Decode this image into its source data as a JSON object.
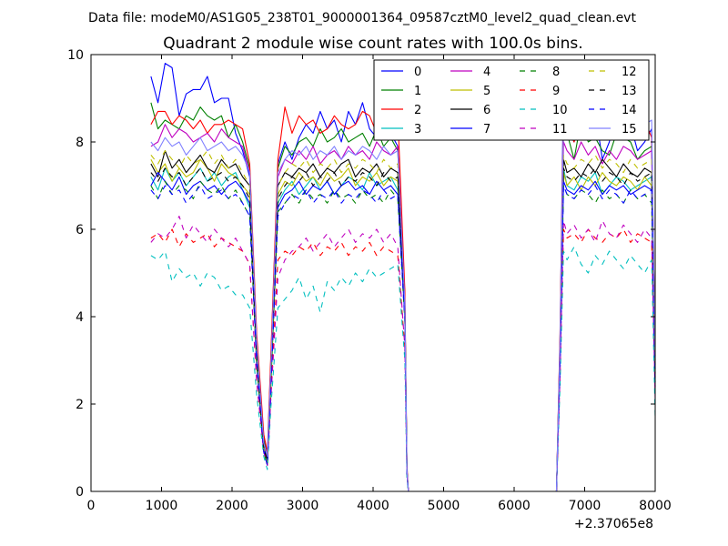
{
  "chart_data": {
    "type": "line",
    "suptitle": "Data file: modeM0/AS1G05_238T01_9000001364_09587cztM0_level2_quad_clean.evt",
    "title": "Quadrant 2 module wise count rates with 100.0s bins.",
    "xlabel": "",
    "ylabel": "",
    "x_offset_label": "+2.37065e8",
    "xlim": [
      0,
      8000
    ],
    "ylim": [
      0,
      10
    ],
    "xticks": [
      "0",
      "1000",
      "2000",
      "3000",
      "4000",
      "5000",
      "6000",
      "7000",
      "8000"
    ],
    "yticks": [
      "0",
      "2",
      "4",
      "6",
      "8",
      "10"
    ],
    "grid": false,
    "legend_position": "top-right",
    "x": [
      850,
      950,
      1050,
      1150,
      1250,
      1350,
      1450,
      1550,
      1650,
      1750,
      1850,
      1950,
      2050,
      2150,
      2250,
      2350,
      2450,
      2500,
      2550,
      2650,
      2750,
      2850,
      2950,
      3050,
      3150,
      3250,
      3350,
      3450,
      3550,
      3650,
      3750,
      3850,
      3950,
      4050,
      4150,
      4250,
      4350,
      4450,
      4480,
      4500,
      4600,
      4800,
      5000,
      5200,
      5400,
      5600,
      5800,
      6000,
      6200,
      6400,
      6600,
      6650,
      6700,
      6750,
      6850,
      6950,
      7050,
      7150,
      7250,
      7350,
      7450,
      7550,
      7650,
      7750,
      7850,
      7950,
      8000
    ],
    "series": [
      {
        "name": "0",
        "color": "#0000ff",
        "dash": "solid",
        "values": [
          9.5,
          8.9,
          9.8,
          9.7,
          8.6,
          9.1,
          9.2,
          9.2,
          9.5,
          8.9,
          9.0,
          9.0,
          8.2,
          7.8,
          7.2,
          3.5,
          1.2,
          0.8,
          3.0,
          7.5,
          8.0,
          7.6,
          8.1,
          8.4,
          8.2,
          8.7,
          8.3,
          8.5,
          8.0,
          8.7,
          8.4,
          8.9,
          8.3,
          8.1,
          8.6,
          8.2,
          7.9,
          4.5,
          0.5,
          0,
          0,
          0,
          0,
          0,
          0,
          0,
          0,
          0,
          0,
          0,
          0,
          3.5,
          9.4,
          8.4,
          8.0,
          9.0,
          8.3,
          8.7,
          7.6,
          8.0,
          8.7,
          8.3,
          8.4,
          7.8,
          8.0,
          8.3,
          3.0
        ]
      },
      {
        "name": "1",
        "color": "#008000",
        "dash": "solid",
        "values": [
          8.9,
          8.3,
          8.5,
          8.4,
          8.3,
          8.6,
          8.5,
          8.8,
          8.6,
          8.5,
          8.6,
          8.1,
          8.4,
          8.0,
          7.4,
          3.4,
          1.2,
          0.7,
          2.9,
          7.4,
          7.9,
          7.7,
          8.0,
          8.1,
          7.9,
          8.3,
          8.0,
          8.1,
          8.3,
          8.0,
          8.1,
          8.2,
          7.9,
          8.3,
          7.9,
          8.1,
          7.8,
          4.4,
          0.5,
          0,
          0,
          0,
          0,
          0,
          0,
          0,
          0,
          0,
          0,
          0,
          0,
          3.4,
          8.3,
          8.2,
          7.6,
          8.5,
          8.0,
          8.1,
          7.8,
          7.7,
          8.2,
          8.1,
          8.0,
          7.6,
          7.8,
          7.9,
          2.9
        ]
      },
      {
        "name": "2",
        "color": "#ff0000",
        "dash": "solid",
        "values": [
          8.4,
          8.7,
          8.7,
          8.4,
          8.6,
          8.5,
          8.3,
          8.5,
          8.2,
          8.4,
          8.4,
          8.5,
          8.4,
          8.3,
          7.5,
          3.6,
          1.3,
          0.9,
          3.1,
          7.6,
          8.8,
          8.2,
          8.6,
          8.4,
          8.5,
          8.2,
          8.3,
          8.6,
          8.4,
          8.3,
          8.4,
          8.7,
          8.6,
          8.2,
          8.7,
          8.5,
          8.6,
          4.6,
          0.6,
          0,
          0,
          0,
          0,
          0,
          0,
          0,
          0,
          0,
          0,
          0,
          0,
          3.6,
          8.8,
          8.3,
          8.0,
          8.5,
          8.7,
          8.1,
          8.2,
          8.8,
          8.6,
          8.4,
          8.5,
          8.2,
          8.5,
          8.1,
          3.1
        ]
      },
      {
        "name": "3",
        "color": "#00bfbf",
        "dash": "solid",
        "values": [
          7.2,
          6.9,
          7.4,
          7.1,
          7.3,
          7.0,
          7.2,
          7.4,
          7.1,
          7.3,
          7.0,
          7.2,
          7.3,
          6.9,
          6.5,
          3.0,
          1.0,
          0.6,
          2.5,
          6.6,
          6.9,
          7.1,
          6.8,
          7.0,
          7.2,
          6.9,
          7.1,
          6.8,
          7.0,
          7.2,
          7.1,
          6.9,
          7.3,
          7.0,
          7.1,
          7.2,
          6.9,
          4.0,
          0.4,
          0,
          0,
          0,
          0,
          0,
          0,
          0,
          0,
          0,
          0,
          0,
          0,
          3.0,
          7.4,
          7.0,
          6.9,
          7.2,
          7.1,
          7.3,
          6.8,
          7.0,
          7.2,
          7.1,
          6.9,
          7.0,
          7.1,
          7.2,
          2.5
        ]
      },
      {
        "name": "4",
        "color": "#bf00bf",
        "dash": "solid",
        "values": [
          7.9,
          8.0,
          8.4,
          8.1,
          8.3,
          8.2,
          8.0,
          8.1,
          8.2,
          8.0,
          8.3,
          8.1,
          8.0,
          7.9,
          7.3,
          3.3,
          1.1,
          0.8,
          2.8,
          7.2,
          7.6,
          7.5,
          7.8,
          7.6,
          7.9,
          7.5,
          7.7,
          7.8,
          7.6,
          7.9,
          7.7,
          7.8,
          7.6,
          8.0,
          7.8,
          7.7,
          7.9,
          4.3,
          0.5,
          0,
          0,
          0,
          0,
          0,
          0,
          0,
          0,
          0,
          0,
          0,
          0,
          3.3,
          8.0,
          7.8,
          7.6,
          8.0,
          7.7,
          7.9,
          7.5,
          7.8,
          7.6,
          7.9,
          7.8,
          7.6,
          7.7,
          7.8,
          2.8
        ]
      },
      {
        "name": "5",
        "color": "#bfbf00",
        "dash": "solid",
        "values": [
          7.6,
          7.3,
          7.5,
          7.1,
          7.4,
          7.2,
          7.3,
          7.6,
          7.4,
          7.1,
          7.5,
          7.3,
          7.2,
          7.0,
          6.8,
          3.1,
          1.0,
          0.7,
          2.6,
          6.8,
          7.1,
          7.0,
          7.3,
          7.1,
          7.2,
          7.0,
          7.3,
          7.1,
          7.2,
          7.4,
          7.0,
          7.2,
          7.1,
          7.3,
          7.0,
          7.2,
          7.1,
          4.1,
          0.4,
          0,
          0,
          0,
          0,
          0,
          0,
          0,
          0,
          0,
          0,
          0,
          0,
          3.1,
          7.3,
          7.0,
          7.2,
          6.9,
          7.2,
          7.0,
          7.3,
          7.1,
          7.0,
          7.2,
          7.1,
          6.9,
          7.2,
          7.0,
          2.6
        ]
      },
      {
        "name": "6",
        "color": "#000000",
        "dash": "solid",
        "values": [
          7.5,
          7.2,
          7.8,
          7.4,
          7.6,
          7.3,
          7.5,
          7.7,
          7.4,
          7.3,
          7.6,
          7.4,
          7.5,
          7.2,
          7.0,
          3.2,
          1.1,
          0.7,
          2.7,
          7.0,
          7.3,
          7.2,
          7.4,
          7.3,
          7.5,
          7.2,
          7.4,
          7.3,
          7.5,
          7.6,
          7.2,
          7.4,
          7.3,
          7.5,
          7.2,
          7.4,
          7.3,
          4.2,
          0.5,
          0,
          0,
          0,
          0,
          0,
          0,
          0,
          0,
          0,
          0,
          0,
          0,
          3.2,
          7.6,
          7.3,
          7.4,
          7.2,
          7.5,
          7.3,
          7.6,
          7.4,
          7.2,
          7.5,
          7.3,
          7.2,
          7.4,
          7.3,
          2.7
        ]
      },
      {
        "name": "7",
        "color": "#0000ff",
        "dash": "solid",
        "values": [
          7.0,
          7.3,
          7.1,
          6.9,
          7.2,
          6.8,
          7.0,
          7.1,
          6.9,
          7.0,
          6.8,
          7.0,
          7.1,
          6.9,
          6.6,
          3.0,
          1.0,
          0.6,
          2.5,
          6.5,
          6.8,
          6.9,
          7.1,
          6.8,
          7.0,
          6.9,
          7.1,
          6.8,
          7.0,
          7.1,
          6.9,
          7.0,
          6.8,
          7.1,
          6.9,
          7.0,
          6.8,
          4.0,
          0.4,
          0,
          0,
          0,
          0,
          0,
          0,
          0,
          0,
          0,
          0,
          0,
          0,
          3.0,
          7.1,
          6.9,
          6.8,
          7.0,
          6.9,
          7.1,
          6.8,
          7.0,
          6.9,
          7.0,
          6.8,
          6.9,
          7.0,
          6.9,
          2.5
        ]
      },
      {
        "name": "8",
        "color": "#008000",
        "dash": "dashed",
        "values": [
          7.0,
          6.7,
          7.1,
          6.8,
          7.0,
          6.9,
          6.7,
          7.1,
          6.9,
          6.8,
          7.0,
          6.7,
          6.9,
          6.6,
          6.3,
          2.9,
          0.9,
          0.6,
          2.4,
          6.4,
          6.6,
          6.8,
          6.6,
          6.9,
          6.7,
          6.8,
          6.6,
          6.9,
          6.7,
          6.8,
          6.6,
          6.9,
          6.7,
          6.8,
          6.6,
          6.9,
          6.7,
          3.9,
          0.4,
          0,
          0,
          0,
          0,
          0,
          0,
          0,
          0,
          0,
          0,
          0,
          0,
          2.9,
          7.0,
          6.8,
          6.7,
          6.9,
          6.8,
          6.6,
          6.9,
          6.7,
          6.8,
          6.6,
          6.9,
          6.7,
          6.8,
          6.6,
          2.4
        ]
      },
      {
        "name": "9",
        "color": "#ff0000",
        "dash": "dashed",
        "values": [
          5.8,
          5.9,
          5.7,
          6.0,
          5.6,
          5.9,
          5.7,
          5.8,
          5.9,
          5.6,
          5.8,
          5.7,
          5.6,
          5.5,
          5.2,
          2.5,
          0.9,
          0.6,
          2.2,
          5.3,
          5.5,
          5.4,
          5.6,
          5.5,
          5.7,
          5.4,
          5.6,
          5.5,
          5.7,
          5.4,
          5.6,
          5.5,
          5.7,
          5.4,
          5.6,
          5.5,
          5.4,
          3.3,
          0.4,
          0,
          0,
          0,
          0,
          0,
          0,
          0,
          0,
          0,
          0,
          0,
          0,
          2.6,
          6.0,
          5.8,
          5.9,
          5.7,
          6.0,
          5.8,
          5.7,
          5.9,
          5.8,
          6.0,
          5.7,
          5.9,
          5.8,
          5.7,
          2.2
        ]
      },
      {
        "name": "10",
        "color": "#00bfbf",
        "dash": "dashed",
        "values": [
          5.4,
          5.3,
          5.5,
          4.8,
          5.1,
          4.9,
          5.0,
          4.7,
          5.0,
          4.9,
          4.6,
          4.7,
          4.5,
          4.5,
          4.2,
          2.2,
          0.8,
          0.5,
          1.9,
          4.2,
          4.4,
          4.6,
          4.9,
          4.4,
          4.7,
          4.1,
          4.8,
          4.6,
          4.9,
          4.7,
          5.0,
          4.8,
          5.1,
          4.9,
          5.0,
          5.1,
          5.2,
          3.0,
          0.3,
          0,
          0,
          0,
          0,
          0,
          0,
          0,
          0,
          0,
          0,
          0,
          0,
          2.4,
          5.5,
          5.3,
          5.6,
          5.2,
          5.0,
          5.4,
          5.2,
          5.5,
          5.3,
          5.1,
          5.4,
          5.2,
          5.0,
          5.3,
          1.7
        ]
      },
      {
        "name": "11",
        "color": "#bf00bf",
        "dash": "dashed",
        "values": [
          5.7,
          5.9,
          5.8,
          6.0,
          6.3,
          5.8,
          6.1,
          5.9,
          5.7,
          6.0,
          5.8,
          5.6,
          5.8,
          5.5,
          5.2,
          2.5,
          0.9,
          0.6,
          2.1,
          4.9,
          5.3,
          5.5,
          5.6,
          5.8,
          5.5,
          5.7,
          5.9,
          5.6,
          5.8,
          6.0,
          5.7,
          5.9,
          5.8,
          6.0,
          5.7,
          5.9,
          5.6,
          3.3,
          0.4,
          0,
          0,
          0,
          0,
          0,
          0,
          0,
          0,
          0,
          0,
          0,
          0,
          2.6,
          6.2,
          5.9,
          6.1,
          5.8,
          6.0,
          5.7,
          6.2,
          5.9,
          5.8,
          6.1,
          5.9,
          5.7,
          6.0,
          5.8,
          2.1
        ]
      },
      {
        "name": "12",
        "color": "#bfbf00",
        "dash": "dashed",
        "values": [
          7.7,
          7.5,
          7.8,
          7.6,
          7.4,
          7.7,
          7.5,
          7.6,
          7.8,
          7.5,
          7.7,
          7.4,
          7.6,
          7.3,
          7.0,
          3.2,
          1.0,
          0.7,
          2.7,
          7.0,
          7.3,
          7.5,
          7.4,
          7.6,
          7.3,
          7.5,
          7.4,
          7.6,
          7.3,
          7.5,
          7.4,
          7.6,
          7.5,
          7.3,
          7.6,
          7.4,
          7.5,
          4.2,
          0.5,
          0,
          0,
          0,
          0,
          0,
          0,
          0,
          0,
          0,
          0,
          0,
          0,
          3.2,
          7.7,
          7.5,
          7.4,
          7.6,
          7.5,
          7.7,
          7.4,
          7.6,
          7.5,
          7.3,
          7.6,
          7.4,
          7.5,
          7.6,
          2.7
        ]
      },
      {
        "name": "13",
        "color": "#000000",
        "dash": "dashed",
        "values": [
          7.3,
          7.1,
          7.4,
          7.2,
          7.3,
          7.0,
          7.2,
          7.4,
          7.1,
          7.2,
          7.3,
          7.1,
          7.2,
          7.0,
          6.7,
          3.1,
          1.0,
          0.7,
          2.6,
          6.7,
          7.0,
          7.2,
          7.1,
          7.3,
          7.0,
          7.2,
          7.1,
          7.3,
          7.0,
          7.2,
          7.1,
          7.3,
          7.2,
          7.0,
          7.3,
          7.1,
          7.2,
          4.1,
          0.4,
          0,
          0,
          0,
          0,
          0,
          0,
          0,
          0,
          0,
          0,
          0,
          0,
          3.1,
          7.4,
          7.2,
          7.1,
          7.3,
          7.2,
          7.4,
          7.1,
          7.3,
          7.2,
          7.0,
          7.3,
          7.1,
          7.2,
          7.3,
          2.6
        ]
      },
      {
        "name": "14",
        "color": "#0000ff",
        "dash": "dashed",
        "values": [
          6.9,
          6.7,
          7.0,
          6.8,
          6.9,
          6.6,
          6.8,
          7.0,
          6.7,
          6.8,
          6.9,
          6.7,
          6.8,
          6.6,
          6.3,
          2.9,
          0.9,
          0.6,
          2.4,
          6.3,
          6.6,
          6.8,
          6.7,
          6.9,
          6.6,
          6.8,
          6.7,
          6.9,
          6.6,
          6.8,
          6.7,
          6.9,
          6.8,
          6.6,
          6.9,
          6.7,
          6.8,
          3.9,
          0.4,
          0,
          0,
          0,
          0,
          0,
          0,
          0,
          0,
          0,
          0,
          0,
          0,
          2.9,
          7.0,
          6.8,
          6.7,
          6.9,
          6.8,
          7.0,
          6.7,
          6.9,
          6.8,
          6.6,
          6.9,
          6.7,
          6.8,
          6.9,
          2.4
        ]
      },
      {
        "name": "15",
        "color": "#8080ff",
        "dash": "solid",
        "values": [
          8.0,
          7.8,
          8.1,
          7.9,
          8.0,
          7.7,
          7.9,
          8.1,
          7.8,
          7.9,
          8.0,
          7.8,
          7.9,
          7.7,
          7.3,
          3.4,
          1.1,
          0.8,
          2.8,
          7.3,
          7.6,
          7.8,
          7.7,
          7.9,
          7.6,
          7.8,
          7.7,
          7.9,
          7.6,
          7.8,
          7.7,
          7.9,
          7.8,
          7.6,
          7.9,
          7.7,
          7.8,
          4.3,
          0.5,
          0,
          0,
          0,
          0,
          0,
          0,
          0,
          0,
          0,
          0,
          0,
          0,
          3.4,
          8.5,
          8.3,
          8.6,
          8.4,
          8.7,
          9.0,
          8.5,
          8.8,
          9.1,
          8.4,
          8.7,
          8.6,
          8.4,
          8.5,
          2.8
        ]
      }
    ]
  }
}
